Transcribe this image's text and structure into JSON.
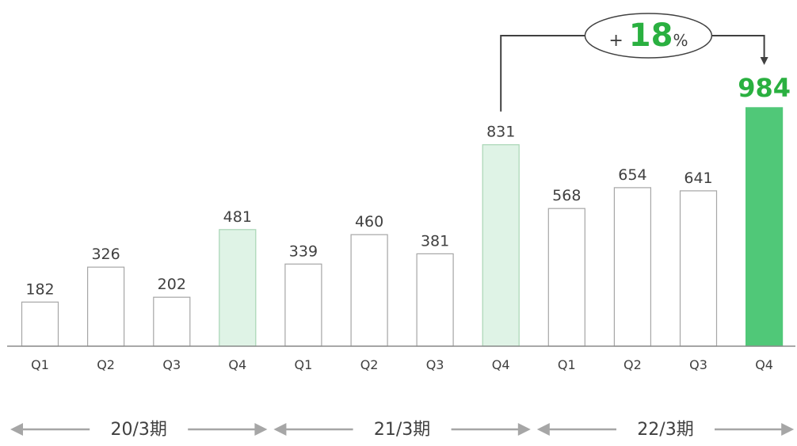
{
  "chart_data": {
    "type": "bar",
    "categories": [
      "Q1",
      "Q2",
      "Q3",
      "Q4",
      "Q1",
      "Q2",
      "Q3",
      "Q4",
      "Q1",
      "Q2",
      "Q3",
      "Q4"
    ],
    "values": [
      182,
      326,
      202,
      481,
      339,
      460,
      381,
      831,
      568,
      654,
      641,
      984
    ],
    "value_labels": [
      "182",
      "326",
      "202",
      "481",
      "339",
      "460",
      "381",
      "831",
      "568",
      "654",
      "641",
      "984"
    ],
    "title": "",
    "xlabel": "",
    "ylabel": "",
    "ylim": [
      0,
      1000
    ],
    "grid": false,
    "legend": "none",
    "period_groups": [
      {
        "label": "20/3期",
        "start": 0,
        "end": 3
      },
      {
        "label": "21/3期",
        "start": 4,
        "end": 7
      },
      {
        "label": "22/3期",
        "start": 8,
        "end": 11
      }
    ],
    "bar_styles": [
      "plain",
      "plain",
      "plain",
      "q4",
      "plain",
      "plain",
      "plain",
      "q4",
      "plain",
      "plain",
      "plain",
      "highlight"
    ],
    "annotation": {
      "type": "growth-arrow",
      "from_index": 7,
      "to_index": 11,
      "prefix": "+",
      "value": "18",
      "suffix": "%"
    }
  },
  "colors": {
    "highlight": "#50c878",
    "q4_fill": "#dff3e6",
    "q4_stroke": "#a8d5b5",
    "plain_stroke": "#a6a6a6",
    "axis": "#8c8c8c",
    "text": "#404040",
    "accent_text": "#2ab040",
    "arrow": "#404040",
    "period_arrow": "#a6a6a6"
  }
}
